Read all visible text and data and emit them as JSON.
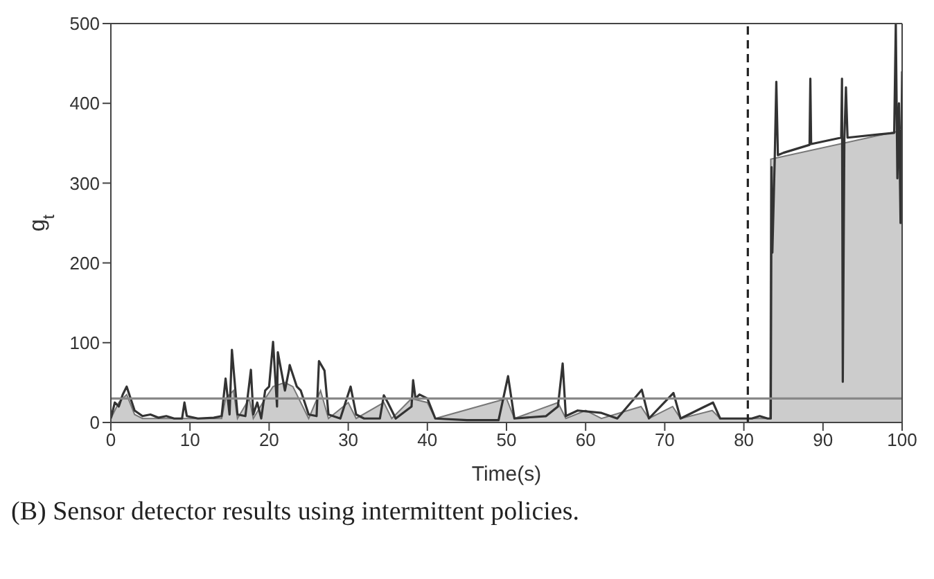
{
  "chart_data": {
    "type": "line",
    "xlabel": "Time(s)",
    "ylabel": "g$_{t}$",
    "xlim": [
      0,
      100
    ],
    "xticks": [
      0,
      10,
      20,
      30,
      40,
      50,
      60,
      70,
      80,
      90,
      100
    ],
    "ylim": [
      0,
      500
    ],
    "yticks": [
      0,
      100,
      200,
      300,
      400,
      500
    ],
    "legend": false,
    "marker": "none",
    "series": [
      {
        "type": "area",
        "color": "#cccccc",
        "x": [
          0,
          1,
          2,
          3,
          4,
          14,
          14.5,
          15.5,
          16,
          17.5,
          18,
          19.5,
          20.5,
          22,
          23,
          24,
          25,
          26.5,
          27.5,
          30,
          31,
          34.5,
          35.5,
          38,
          40,
          41,
          50,
          51,
          56.5,
          57.5,
          60,
          62,
          67,
          68,
          71,
          72,
          76,
          77,
          83.3,
          83.4,
          99.5,
          100
        ],
        "values": [
          5,
          25,
          35,
          10,
          5,
          5,
          30,
          40,
          5,
          30,
          5,
          30,
          45,
          50,
          45,
          25,
          5,
          40,
          5,
          25,
          5,
          25,
          5,
          30,
          25,
          5,
          30,
          5,
          25,
          5,
          15,
          5,
          20,
          5,
          20,
          5,
          15,
          5,
          5,
          330,
          365,
          365
        ]
      },
      {
        "color": "#333333",
        "x": [
          0,
          0.5,
          1,
          1.5,
          2,
          2.5,
          3,
          4,
          5,
          6,
          7,
          8,
          9,
          9.3,
          9.6,
          11,
          13,
          14,
          14.5,
          15,
          15.3,
          16,
          17,
          17.7,
          18,
          18.5,
          19,
          19.5,
          20,
          20.5,
          21,
          21.1,
          22,
          22.5,
          22.6,
          23.5,
          24,
          25,
          26,
          26.3,
          27,
          27.5,
          29,
          30.3,
          31,
          32,
          34,
          34.5,
          35,
          36,
          38,
          38.2,
          38.5,
          39,
          40,
          41,
          45,
          49,
          50.2,
          51,
          55,
          56.5,
          57.1,
          57.5,
          59,
          62,
          64,
          67.1,
          68,
          71.1,
          72,
          76.1,
          77,
          81,
          82,
          83,
          83.4,
          83.5,
          83.6,
          83.9,
          84.1,
          84.3,
          85,
          88.3,
          88.4,
          88.5,
          92.3,
          92.4,
          92.5,
          92.7,
          92.9,
          93.1,
          99,
          99.2,
          99.4,
          99.6,
          99.8,
          100
        ],
        "values": [
          5,
          25,
          20,
          35,
          45,
          30,
          15,
          8,
          10,
          6,
          8,
          5,
          5,
          25,
          8,
          5,
          6,
          8,
          55,
          10,
          91,
          10,
          8,
          66,
          10,
          25,
          5,
          40,
          45,
          101,
          20,
          88,
          40,
          65,
          72,
          45,
          40,
          10,
          8,
          77,
          65,
          10,
          5,
          45,
          10,
          5,
          5,
          34,
          25,
          5,
          20,
          53,
          30,
          35,
          30,
          5,
          3,
          3,
          58,
          5,
          8,
          20,
          74,
          8,
          15,
          12,
          5,
          41,
          5,
          37,
          5,
          25,
          5,
          5,
          8,
          5,
          5,
          320,
          213,
          330,
          427,
          335,
          338,
          348,
          431,
          349,
          357,
          431,
          51,
          355,
          420,
          357,
          363,
          500,
          306,
          400,
          250,
          440
        ]
      }
    ],
    "ref_lines": [
      {
        "axis": "y",
        "value": 30,
        "color": "#888888",
        "line_style": "solid"
      },
      {
        "axis": "x",
        "value": 80.5,
        "color": "#222222",
        "line_style": "dashed"
      }
    ],
    "annotations": [
      "(B) Sensor detector results using intermittent policies."
    ]
  }
}
